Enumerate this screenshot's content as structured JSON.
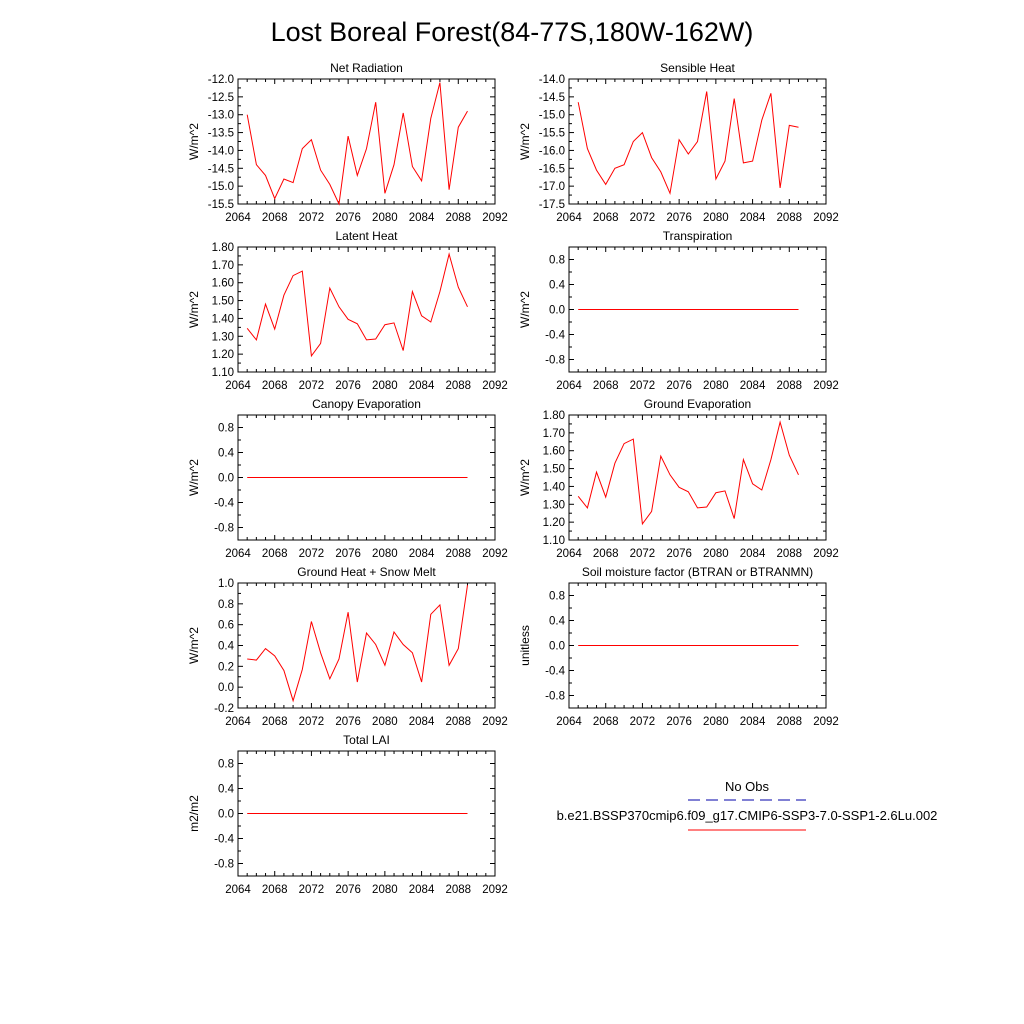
{
  "title": "Lost Boreal Forest(84-77S,180W-162W)",
  "colors": {
    "series": "#ff0000",
    "obs": "#0000aa",
    "axis": "#000000"
  },
  "legend": {
    "obs_label": "No Obs",
    "model_label": "b.e21.BSSP370cmip6.f09_g17.CMIP6-SSP3-7.0-SSP1-2.6Lu.002"
  },
  "chart_data": [
    {
      "type": "line",
      "title": "Net Radiation",
      "ylabel": "W/m^2",
      "xlim": [
        2064,
        2092
      ],
      "xticks": [
        "2064",
        "2068",
        "2072",
        "2076",
        "2080",
        "2084",
        "2088",
        "2092"
      ],
      "ylim": [
        -15.5,
        -12.0
      ],
      "yticks": [
        "-15.5",
        "-15.0",
        "-14.5",
        "-14.0",
        "-13.5",
        "-13.0",
        "-12.5",
        "-12.0"
      ],
      "x": [
        2065,
        2066,
        2067,
        2068,
        2069,
        2070,
        2071,
        2072,
        2073,
        2074,
        2075,
        2076,
        2077,
        2078,
        2079,
        2080,
        2081,
        2082,
        2083,
        2084,
        2085,
        2086,
        2087,
        2088,
        2089
      ],
      "values": [
        -13.0,
        -14.4,
        -14.7,
        -15.35,
        -14.8,
        -14.9,
        -13.95,
        -13.7,
        -14.55,
        -14.95,
        -15.5,
        -13.6,
        -14.7,
        -13.95,
        -12.65,
        -15.2,
        -14.4,
        -12.95,
        -14.45,
        -14.85,
        -13.1,
        -12.1,
        -15.1,
        -13.35,
        -12.9
      ]
    },
    {
      "type": "line",
      "title": "Sensible Heat",
      "ylabel": "W/m^2",
      "xlim": [
        2064,
        2092
      ],
      "xticks": [
        "2064",
        "2068",
        "2072",
        "2076",
        "2080",
        "2084",
        "2088",
        "2092"
      ],
      "ylim": [
        -17.5,
        -14.0
      ],
      "yticks": [
        "-17.5",
        "-17.0",
        "-16.5",
        "-16.0",
        "-15.5",
        "-15.0",
        "-14.5",
        "-14.0"
      ],
      "x": [
        2065,
        2066,
        2067,
        2068,
        2069,
        2070,
        2071,
        2072,
        2073,
        2074,
        2075,
        2076,
        2077,
        2078,
        2079,
        2080,
        2081,
        2082,
        2083,
        2084,
        2085,
        2086,
        2087,
        2088,
        2089
      ],
      "values": [
        -14.65,
        -15.95,
        -16.55,
        -16.95,
        -16.5,
        -16.4,
        -15.75,
        -15.5,
        -16.2,
        -16.6,
        -17.2,
        -15.7,
        -16.1,
        -15.75,
        -14.35,
        -16.8,
        -16.3,
        -14.55,
        -16.35,
        -16.3,
        -15.15,
        -14.4,
        -17.05,
        -15.3,
        -15.35
      ]
    },
    {
      "type": "line",
      "title": "Latent Heat",
      "ylabel": "W/m^2",
      "xlim": [
        2064,
        2092
      ],
      "xticks": [
        "2064",
        "2068",
        "2072",
        "2076",
        "2080",
        "2084",
        "2088",
        "2092"
      ],
      "ylim": [
        1.1,
        1.8
      ],
      "yticks": [
        "1.10",
        "1.20",
        "1.30",
        "1.40",
        "1.50",
        "1.60",
        "1.70",
        "1.80"
      ],
      "x": [
        2065,
        2066,
        2067,
        2068,
        2069,
        2070,
        2071,
        2072,
        2073,
        2074,
        2075,
        2076,
        2077,
        2078,
        2079,
        2080,
        2081,
        2082,
        2083,
        2084,
        2085,
        2086,
        2087,
        2088,
        2089
      ],
      "values": [
        1.345,
        1.28,
        1.48,
        1.34,
        1.53,
        1.64,
        1.665,
        1.19,
        1.26,
        1.57,
        1.465,
        1.395,
        1.37,
        1.28,
        1.285,
        1.365,
        1.375,
        1.22,
        1.55,
        1.415,
        1.38,
        1.55,
        1.76,
        1.575,
        1.465
      ]
    },
    {
      "type": "line",
      "title": "Transpiration",
      "ylabel": "W/m^2",
      "xlim": [
        2064,
        2092
      ],
      "xticks": [
        "2064",
        "2068",
        "2072",
        "2076",
        "2080",
        "2084",
        "2088",
        "2092"
      ],
      "ylim": [
        -1.0,
        1.0
      ],
      "yticks": [
        "-0.8",
        "-0.4",
        "0.0",
        "0.4",
        "0.8"
      ],
      "yticks_num": [
        -0.8,
        -0.4,
        0.0,
        0.4,
        0.8
      ],
      "x": [
        2065,
        2066,
        2067,
        2068,
        2069,
        2070,
        2071,
        2072,
        2073,
        2074,
        2075,
        2076,
        2077,
        2078,
        2079,
        2080,
        2081,
        2082,
        2083,
        2084,
        2085,
        2086,
        2087,
        2088,
        2089
      ],
      "values": [
        0,
        0,
        0,
        0,
        0,
        0,
        0,
        0,
        0,
        0,
        0,
        0,
        0,
        0,
        0,
        0,
        0,
        0,
        0,
        0,
        0,
        0,
        0,
        0,
        0
      ]
    },
    {
      "type": "line",
      "title": "Canopy Evaporation",
      "ylabel": "W/m^2",
      "xlim": [
        2064,
        2092
      ],
      "xticks": [
        "2064",
        "2068",
        "2072",
        "2076",
        "2080",
        "2084",
        "2088",
        "2092"
      ],
      "ylim": [
        -1.0,
        1.0
      ],
      "yticks": [
        "-0.8",
        "-0.4",
        "0.0",
        "0.4",
        "0.8"
      ],
      "yticks_num": [
        -0.8,
        -0.4,
        0.0,
        0.4,
        0.8
      ],
      "x": [
        2065,
        2066,
        2067,
        2068,
        2069,
        2070,
        2071,
        2072,
        2073,
        2074,
        2075,
        2076,
        2077,
        2078,
        2079,
        2080,
        2081,
        2082,
        2083,
        2084,
        2085,
        2086,
        2087,
        2088,
        2089
      ],
      "values": [
        0,
        0,
        0,
        0,
        0,
        0,
        0,
        0,
        0,
        0,
        0,
        0,
        0,
        0,
        0,
        0,
        0,
        0,
        0,
        0,
        0,
        0,
        0,
        0,
        0
      ]
    },
    {
      "type": "line",
      "title": "Ground Evaporation",
      "ylabel": "W/m^2",
      "xlim": [
        2064,
        2092
      ],
      "xticks": [
        "2064",
        "2068",
        "2072",
        "2076",
        "2080",
        "2084",
        "2088",
        "2092"
      ],
      "ylim": [
        1.1,
        1.8
      ],
      "yticks": [
        "1.10",
        "1.20",
        "1.30",
        "1.40",
        "1.50",
        "1.60",
        "1.70",
        "1.80"
      ],
      "x": [
        2065,
        2066,
        2067,
        2068,
        2069,
        2070,
        2071,
        2072,
        2073,
        2074,
        2075,
        2076,
        2077,
        2078,
        2079,
        2080,
        2081,
        2082,
        2083,
        2084,
        2085,
        2086,
        2087,
        2088,
        2089
      ],
      "values": [
        1.345,
        1.28,
        1.48,
        1.34,
        1.53,
        1.64,
        1.665,
        1.19,
        1.26,
        1.57,
        1.465,
        1.395,
        1.37,
        1.28,
        1.285,
        1.365,
        1.375,
        1.22,
        1.55,
        1.415,
        1.38,
        1.55,
        1.76,
        1.575,
        1.465
      ]
    },
    {
      "type": "line",
      "title": "Ground Heat + Snow Melt",
      "ylabel": "W/m^2",
      "xlim": [
        2064,
        2092
      ],
      "xticks": [
        "2064",
        "2068",
        "2072",
        "2076",
        "2080",
        "2084",
        "2088",
        "2092"
      ],
      "ylim": [
        -0.2,
        1.0
      ],
      "yticks": [
        "-0.2",
        "0.0",
        "0.2",
        "0.4",
        "0.6",
        "0.8",
        "1.0"
      ],
      "x": [
        2065,
        2066,
        2067,
        2068,
        2069,
        2070,
        2071,
        2072,
        2073,
        2074,
        2075,
        2076,
        2077,
        2078,
        2079,
        2080,
        2081,
        2082,
        2083,
        2084,
        2085,
        2086,
        2087,
        2088,
        2089
      ],
      "values": [
        0.27,
        0.26,
        0.37,
        0.3,
        0.16,
        -0.13,
        0.17,
        0.63,
        0.33,
        0.08,
        0.27,
        0.72,
        0.05,
        0.52,
        0.41,
        0.21,
        0.53,
        0.41,
        0.33,
        0.05,
        0.7,
        0.79,
        0.21,
        0.37,
        0.98
      ]
    },
    {
      "type": "line",
      "title": "Soil moisture factor (BTRAN or BTRANMN)",
      "ylabel": "unitless",
      "xlim": [
        2064,
        2092
      ],
      "xticks": [
        "2064",
        "2068",
        "2072",
        "2076",
        "2080",
        "2084",
        "2088",
        "2092"
      ],
      "ylim": [
        -1.0,
        1.0
      ],
      "yticks": [
        "-0.8",
        "-0.4",
        "0.0",
        "0.4",
        "0.8"
      ],
      "yticks_num": [
        -0.8,
        -0.4,
        0.0,
        0.4,
        0.8
      ],
      "x": [
        2065,
        2066,
        2067,
        2068,
        2069,
        2070,
        2071,
        2072,
        2073,
        2074,
        2075,
        2076,
        2077,
        2078,
        2079,
        2080,
        2081,
        2082,
        2083,
        2084,
        2085,
        2086,
        2087,
        2088,
        2089
      ],
      "values": [
        0,
        0,
        0,
        0,
        0,
        0,
        0,
        0,
        0,
        0,
        0,
        0,
        0,
        0,
        0,
        0,
        0,
        0,
        0,
        0,
        0,
        0,
        0,
        0,
        0
      ]
    },
    {
      "type": "line",
      "title": "Total LAI",
      "ylabel": "m2/m2",
      "xlim": [
        2064,
        2092
      ],
      "xticks": [
        "2064",
        "2068",
        "2072",
        "2076",
        "2080",
        "2084",
        "2088",
        "2092"
      ],
      "ylim": [
        -1.0,
        1.0
      ],
      "yticks": [
        "-0.8",
        "-0.4",
        "0.0",
        "0.4",
        "0.8"
      ],
      "yticks_num": [
        -0.8,
        -0.4,
        0.0,
        0.4,
        0.8
      ],
      "x": [
        2065,
        2066,
        2067,
        2068,
        2069,
        2070,
        2071,
        2072,
        2073,
        2074,
        2075,
        2076,
        2077,
        2078,
        2079,
        2080,
        2081,
        2082,
        2083,
        2084,
        2085,
        2086,
        2087,
        2088,
        2089
      ],
      "values": [
        0,
        0,
        0,
        0,
        0,
        0,
        0,
        0,
        0,
        0,
        0,
        0,
        0,
        0,
        0,
        0,
        0,
        0,
        0,
        0,
        0,
        0,
        0,
        0,
        0
      ]
    }
  ]
}
